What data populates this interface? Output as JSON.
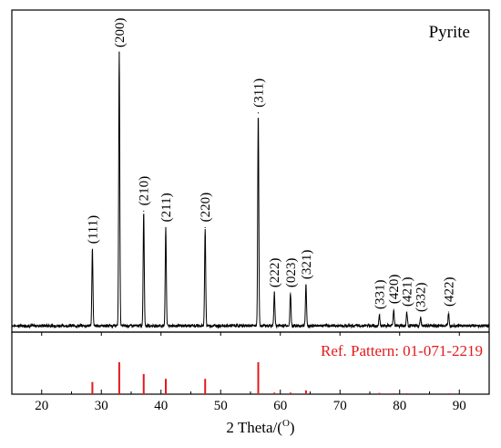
{
  "chart_data": {
    "type": "line",
    "title": "Pyrite",
    "xlabel": "2 Theta/(°)",
    "xlabel_main": "2 Theta/(",
    "xlabel_sup": "O",
    "xlabel_close": ")",
    "xlim": [
      15,
      95
    ],
    "xticks": [
      20,
      30,
      40,
      50,
      60,
      70,
      80,
      90
    ],
    "xtick_labels": [
      "20",
      "30",
      "40",
      "50",
      "60",
      "70",
      "80",
      "90"
    ],
    "series": [
      {
        "peaks": [
          {
            "x": 28.5,
            "y": 28,
            "label": "(111)"
          },
          {
            "x": 33.0,
            "y": 100,
            "label": "(200)"
          },
          {
            "x": 37.1,
            "y": 42,
            "label": "(210)"
          },
          {
            "x": 40.8,
            "y": 36,
            "label": "(211)"
          },
          {
            "x": 47.4,
            "y": 36,
            "label": "(220)"
          },
          {
            "x": 56.3,
            "y": 78,
            "label": "(311)"
          },
          {
            "x": 59.0,
            "y": 12,
            "label": "(222)"
          },
          {
            "x": 61.7,
            "y": 12,
            "label": "(023)"
          },
          {
            "x": 64.3,
            "y": 15,
            "label": "(321)"
          },
          {
            "x": 76.6,
            "y": 4,
            "label": "(331)"
          },
          {
            "x": 79.0,
            "y": 6,
            "label": "(420)"
          },
          {
            "x": 81.2,
            "y": 5,
            "label": "(421)"
          },
          {
            "x": 83.5,
            "y": 3,
            "label": "(332)"
          },
          {
            "x": 88.2,
            "y": 5,
            "label": "(422)"
          }
        ]
      },
      {
        "name": "Ref. Pattern: 01-071-2219",
        "color": "#e31a1c",
        "sticks": [
          {
            "x": 28.5,
            "y": 38
          },
          {
            "x": 33.0,
            "y": 100
          },
          {
            "x": 37.1,
            "y": 63
          },
          {
            "x": 40.8,
            "y": 48
          },
          {
            "x": 47.4,
            "y": 48
          },
          {
            "x": 56.3,
            "y": 100
          },
          {
            "x": 59.0,
            "y": 5
          },
          {
            "x": 61.7,
            "y": 5
          },
          {
            "x": 64.3,
            "y": 12
          },
          {
            "x": 76.6,
            "y": 4
          },
          {
            "x": 79.0,
            "y": 3
          },
          {
            "x": 81.2,
            "y": 3
          },
          {
            "x": 88.2,
            "y": 3
          }
        ]
      }
    ],
    "grid": false,
    "legend": "none"
  }
}
